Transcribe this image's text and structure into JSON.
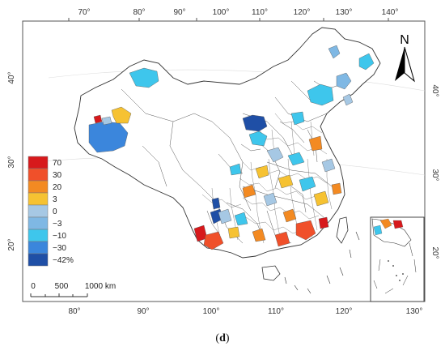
{
  "top_lon_ticks": [
    "70°",
    "80°",
    "90°",
    "100°",
    "110°",
    "120°",
    "130°",
    "140°"
  ],
  "bottom_lon_ticks": [
    "80°",
    "90°",
    "100°",
    "110°",
    "120°",
    "130°"
  ],
  "left_lat_ticks": [
    "40°",
    "30°",
    "20°"
  ],
  "right_lat_ticks": [
    "40°",
    "30°",
    "20°"
  ],
  "north_label": "N",
  "legend": {
    "labels": [
      "70",
      "30",
      "20",
      "3",
      "0",
      "−3",
      "−10",
      "−30",
      "−42%"
    ],
    "colors": [
      "#d7191c",
      "#f0502a",
      "#f38a22",
      "#f6c232",
      "#a6c8e4",
      "#7fb8e4",
      "#3ec6ec",
      "#3b86dc",
      "#1f4fa6"
    ]
  },
  "scale_bar": {
    "labels": [
      "0",
      "500",
      "1000 km"
    ]
  },
  "caption": {
    "open": "(",
    "letter": "d",
    "close": ")"
  },
  "colors": {
    "frame": "#555555",
    "boundary": "#333333",
    "land": "#ffffff"
  }
}
